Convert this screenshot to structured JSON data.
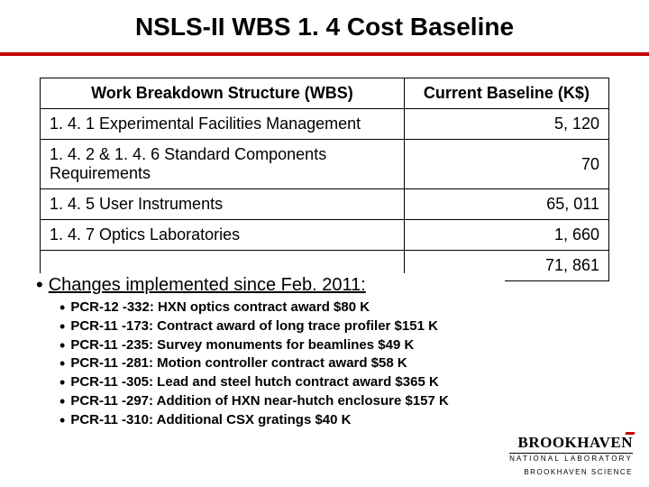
{
  "title": "NSLS-II WBS 1. 4 Cost Baseline",
  "rule_color": "#c00000",
  "table": {
    "headers": {
      "wbs": "Work Breakdown Structure (WBS)",
      "baseline": "Current Baseline (K$)"
    },
    "rows": [
      {
        "wbs": "1. 4. 1 Experimental Facilities Management",
        "val": "5, 120"
      },
      {
        "wbs": "1. 4. 2 & 1. 4. 6 Standard Components Requirements",
        "val": "70"
      },
      {
        "wbs": "1. 4. 5 User Instruments",
        "val": "65, 011"
      },
      {
        "wbs": "1. 4. 7 Optics Laboratories",
        "val": "1, 660"
      },
      {
        "wbs": "",
        "val": "71, 861"
      }
    ]
  },
  "changes": {
    "heading": "Changes implemented since Feb. 2011:",
    "items": [
      "PCR-12 -332: HXN optics contract award $80 K",
      "PCR-11 -173: Contract award of long trace profiler $151 K",
      "PCR-11 -235: Survey monuments for beamlines $49 K",
      "PCR-11 -281: Motion controller contract award $58 K",
      "PCR-11 -305: Lead and steel hutch contract award $365 K",
      "PCR-11 -297: Addition of HXN near-hutch enclosure $157 K",
      "PCR-11 -310: Additional CSX gratings $40 K"
    ]
  },
  "footer": {
    "logo_main": "BROOKHAVEN",
    "logo_sub": "NATIONAL LABORATORY",
    "tagline": "BROOKHAVEN SCIENCE"
  }
}
